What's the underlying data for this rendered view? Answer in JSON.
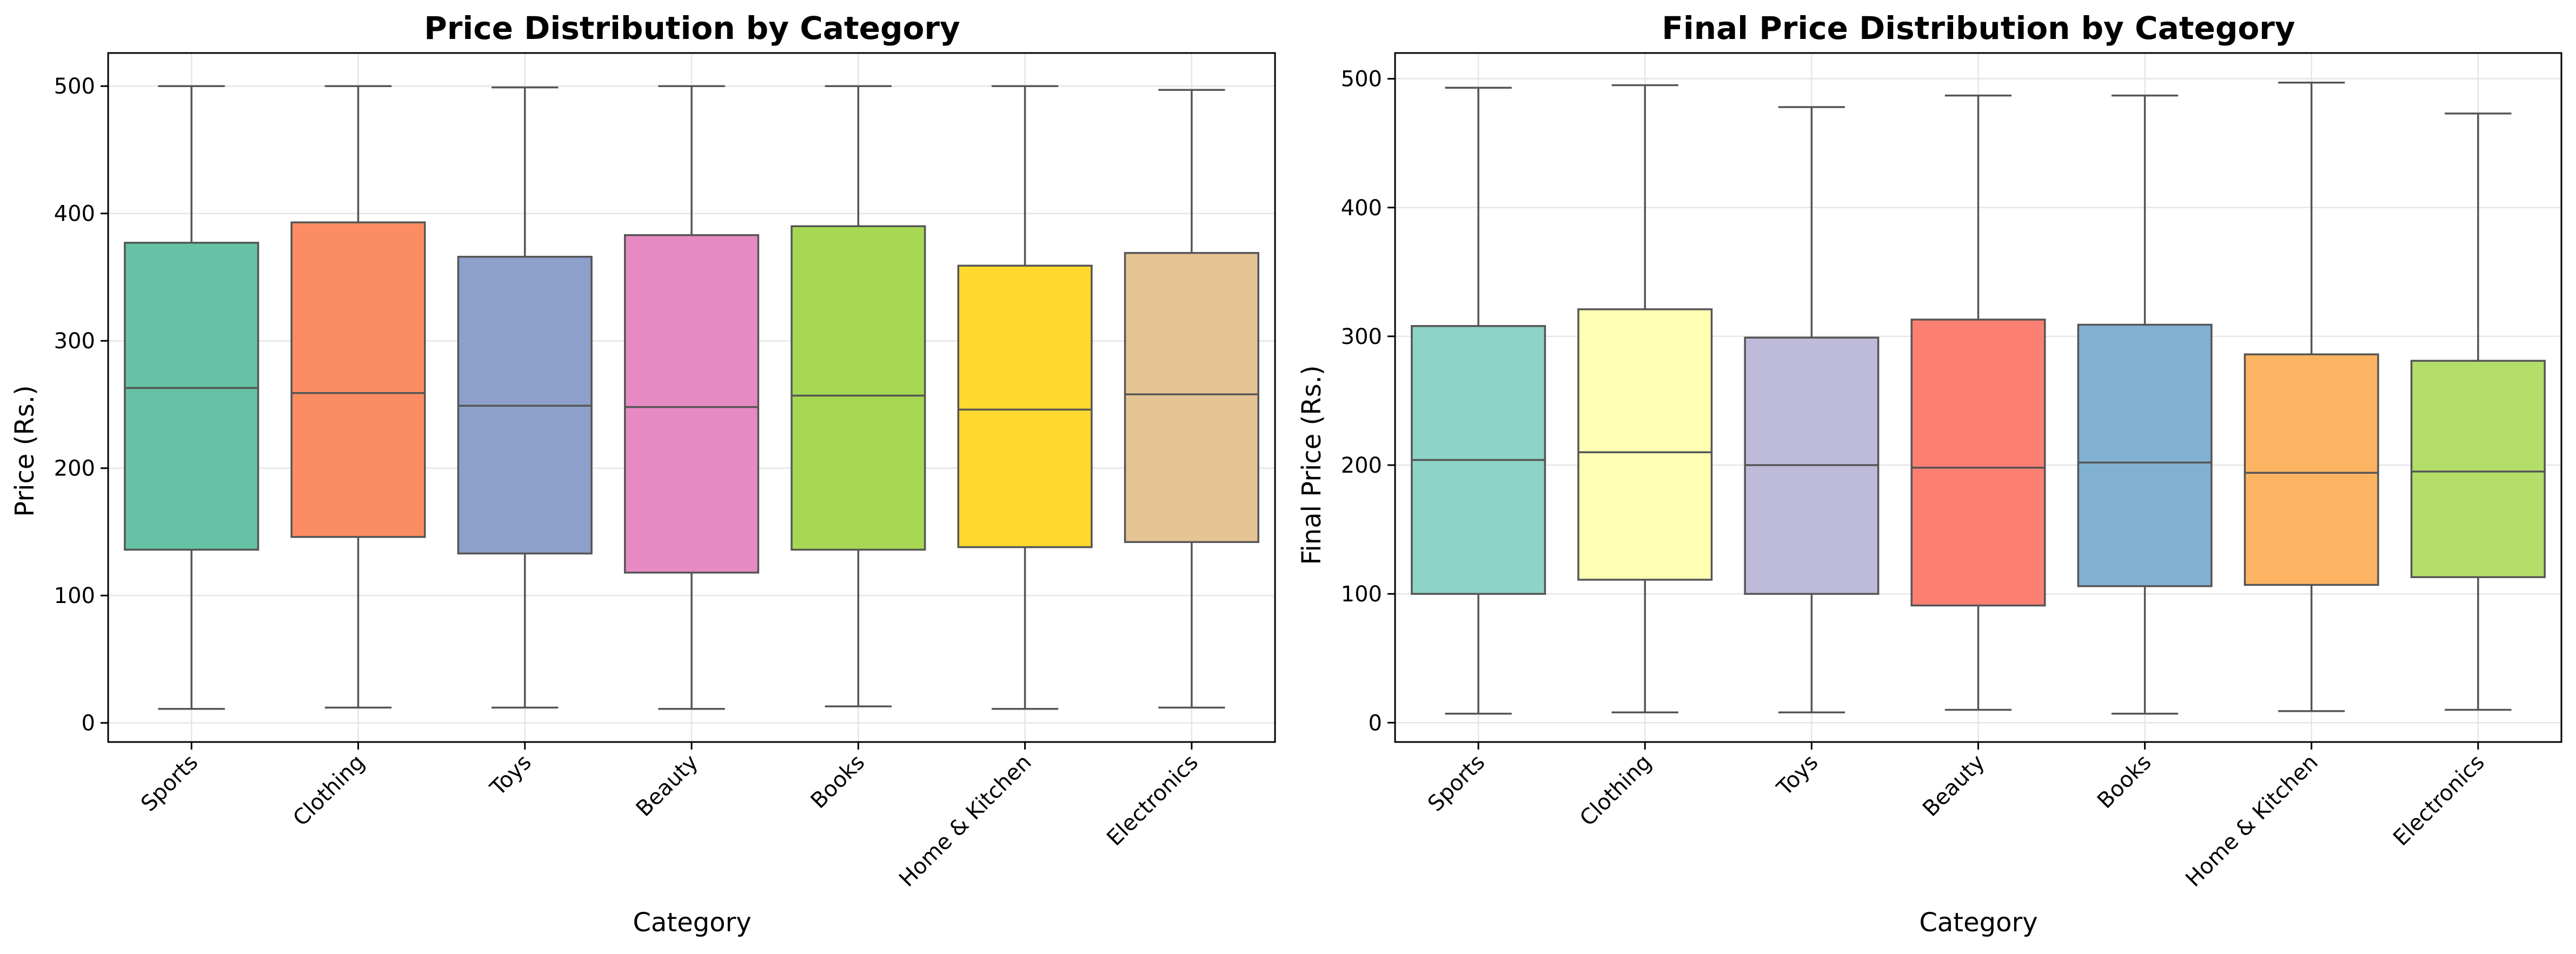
{
  "chart_data": [
    {
      "type": "box",
      "title": "Price Distribution by Category",
      "xlabel": "Category",
      "ylabel": "Price (Rs.)",
      "ylim": [
        -15,
        526
      ],
      "yticks": [
        0,
        100,
        200,
        300,
        400,
        500
      ],
      "grid": true,
      "categories": [
        "Sports",
        "Clothing",
        "Toys",
        "Beauty",
        "Books",
        "Home & Kitchen",
        "Electronics"
      ],
      "colors": [
        "#66c2a5",
        "#fc8d62",
        "#8da0cb",
        "#e78ac3",
        "#a6d854",
        "#ffd92f",
        "#e5c494"
      ],
      "boxes": [
        {
          "min": 11,
          "q1": 136,
          "median": 263,
          "q3": 377,
          "max": 500
        },
        {
          "min": 12,
          "q1": 146,
          "median": 259,
          "q3": 393,
          "max": 500
        },
        {
          "min": 12,
          "q1": 133,
          "median": 249,
          "q3": 366,
          "max": 499
        },
        {
          "min": 11,
          "q1": 118,
          "median": 248,
          "q3": 383,
          "max": 500
        },
        {
          "min": 13,
          "q1": 136,
          "median": 257,
          "q3": 390,
          "max": 500
        },
        {
          "min": 11,
          "q1": 138,
          "median": 246,
          "q3": 359,
          "max": 500
        },
        {
          "min": 12,
          "q1": 142,
          "median": 258,
          "q3": 369,
          "max": 497
        }
      ]
    },
    {
      "type": "box",
      "title": "Final Price Distribution by Category",
      "xlabel": "Category",
      "ylabel": "Final Price (Rs.)",
      "ylim": [
        -15,
        520
      ],
      "yticks": [
        0,
        100,
        200,
        300,
        400,
        500
      ],
      "grid": true,
      "categories": [
        "Sports",
        "Clothing",
        "Toys",
        "Beauty",
        "Books",
        "Home & Kitchen",
        "Electronics"
      ],
      "colors": [
        "#8dd3c7",
        "#ffffb3",
        "#bebada",
        "#fb8072",
        "#80b1d3",
        "#fdb462",
        "#b3de69"
      ],
      "boxes": [
        {
          "min": 7,
          "q1": 100,
          "median": 204,
          "q3": 308,
          "max": 493
        },
        {
          "min": 8,
          "q1": 111,
          "median": 210,
          "q3": 321,
          "max": 495
        },
        {
          "min": 8,
          "q1": 100,
          "median": 200,
          "q3": 299,
          "max": 478
        },
        {
          "min": 10,
          "q1": 91,
          "median": 198,
          "q3": 313,
          "max": 487
        },
        {
          "min": 7,
          "q1": 106,
          "median": 202,
          "q3": 309,
          "max": 487
        },
        {
          "min": 9,
          "q1": 107,
          "median": 194,
          "q3": 286,
          "max": 497
        },
        {
          "min": 10,
          "q1": 113,
          "median": 195,
          "q3": 281,
          "max": 473
        }
      ]
    }
  ]
}
